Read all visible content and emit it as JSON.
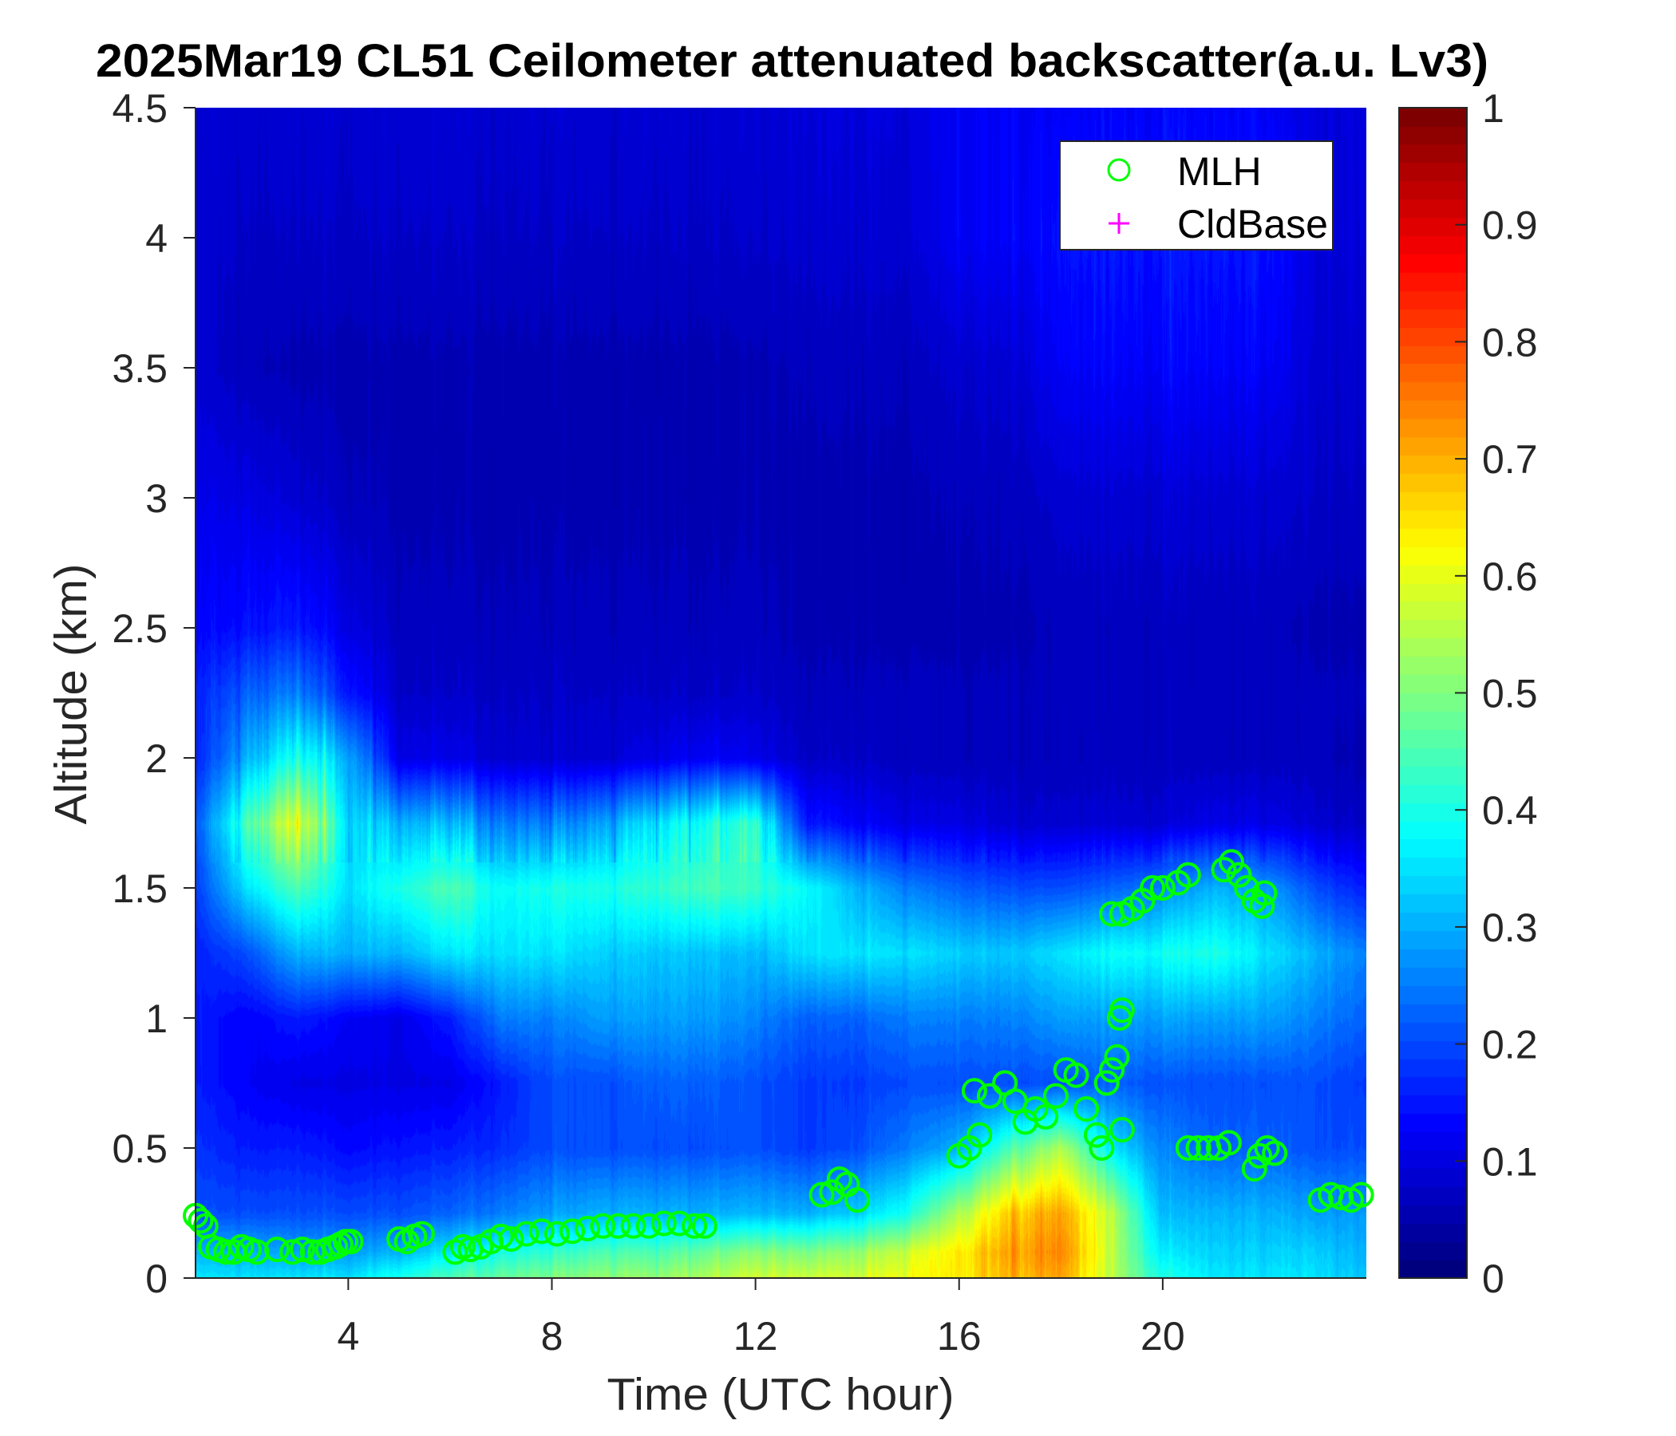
{
  "chart_data": {
    "type": "heatmap",
    "title": "2025Mar19 CL51 Ceilometer attenuated backscatter(a.u. Lv3)",
    "xlabel": "Time (UTC hour)",
    "ylabel": "Altitude (km)",
    "xlim": [
      1,
      24
    ],
    "ylim": [
      0,
      4.5
    ],
    "xticks": [
      4,
      8,
      12,
      16,
      20
    ],
    "xtick_labels": [
      "4",
      "8",
      "12",
      "16",
      "20"
    ],
    "yticks": [
      0,
      0.5,
      1,
      1.5,
      2,
      2.5,
      3,
      3.5,
      4,
      4.5
    ],
    "ytick_labels": [
      "0",
      "0.5",
      "1",
      "1.5",
      "2",
      "2.5",
      "3",
      "3.5",
      "4",
      "4.5"
    ],
    "colormap": "jet",
    "clim": [
      0,
      1
    ],
    "colorbar_ticks": [
      0,
      0.1,
      0.2,
      0.3,
      0.4,
      0.5,
      0.6,
      0.7,
      0.8,
      0.9,
      1
    ],
    "colorbar_tick_labels": [
      "0",
      "0.1",
      "0.2",
      "0.3",
      "0.4",
      "0.5",
      "0.6",
      "0.7",
      "0.8",
      "0.9",
      "1"
    ],
    "grid": false,
    "legend_position": "top-right",
    "legend": [
      {
        "name": "MLH",
        "marker": "circle",
        "color": "#00ff00"
      },
      {
        "name": "CldBase",
        "marker": "plus",
        "color": "#ff00ff"
      }
    ],
    "backscatter_grid": {
      "time_hours": [
        1,
        2,
        3,
        4,
        5,
        6,
        7,
        8,
        9,
        10,
        11,
        12,
        13,
        14,
        15,
        16,
        17,
        18,
        19,
        20,
        21,
        22,
        23,
        24
      ],
      "altitude_km": [
        0,
        0.1,
        0.25,
        0.5,
        0.75,
        1.0,
        1.25,
        1.5,
        1.75,
        2.0,
        2.25,
        2.5,
        3.0,
        3.5,
        4.0,
        4.5
      ],
      "values": [
        [
          0.35,
          0.35,
          0.35,
          0.35,
          0.4,
          0.45,
          0.48,
          0.5,
          0.52,
          0.52,
          0.55,
          0.57,
          0.58,
          0.58,
          0.62,
          0.65,
          0.7,
          0.72,
          0.55,
          0.4,
          0.35,
          0.35,
          0.35,
          0.32
        ],
        [
          0.3,
          0.3,
          0.28,
          0.28,
          0.3,
          0.35,
          0.4,
          0.42,
          0.45,
          0.45,
          0.48,
          0.5,
          0.5,
          0.52,
          0.58,
          0.65,
          0.72,
          0.75,
          0.55,
          0.35,
          0.33,
          0.33,
          0.33,
          0.3
        ],
        [
          0.2,
          0.2,
          0.2,
          0.2,
          0.2,
          0.22,
          0.25,
          0.28,
          0.3,
          0.3,
          0.3,
          0.3,
          0.3,
          0.33,
          0.4,
          0.55,
          0.68,
          0.72,
          0.55,
          0.3,
          0.3,
          0.3,
          0.28,
          0.28
        ],
        [
          0.17,
          0.15,
          0.15,
          0.13,
          0.14,
          0.15,
          0.17,
          0.2,
          0.2,
          0.2,
          0.2,
          0.2,
          0.18,
          0.2,
          0.25,
          0.3,
          0.45,
          0.55,
          0.35,
          0.25,
          0.22,
          0.22,
          0.2,
          0.2
        ],
        [
          0.15,
          0.12,
          0.1,
          0.1,
          0.1,
          0.1,
          0.15,
          0.2,
          0.2,
          0.22,
          0.22,
          0.2,
          0.18,
          0.18,
          0.2,
          0.2,
          0.2,
          0.2,
          0.22,
          0.2,
          0.2,
          0.2,
          0.2,
          0.18
        ],
        [
          0.15,
          0.12,
          0.15,
          0.12,
          0.1,
          0.15,
          0.25,
          0.25,
          0.28,
          0.28,
          0.28,
          0.25,
          0.22,
          0.22,
          0.25,
          0.25,
          0.25,
          0.28,
          0.28,
          0.28,
          0.28,
          0.28,
          0.25,
          0.22
        ],
        [
          0.15,
          0.2,
          0.3,
          0.3,
          0.3,
          0.35,
          0.35,
          0.35,
          0.33,
          0.32,
          0.32,
          0.3,
          0.35,
          0.35,
          0.35,
          0.33,
          0.32,
          0.35,
          0.38,
          0.38,
          0.4,
          0.35,
          0.3,
          0.25
        ],
        [
          0.18,
          0.35,
          0.45,
          0.35,
          0.4,
          0.45,
          0.38,
          0.4,
          0.4,
          0.42,
          0.45,
          0.42,
          0.38,
          0.3,
          0.25,
          0.22,
          0.2,
          0.2,
          0.22,
          0.25,
          0.3,
          0.28,
          0.2,
          0.15
        ],
        [
          0.2,
          0.45,
          0.6,
          0.35,
          0.3,
          0.3,
          0.25,
          0.25,
          0.28,
          0.35,
          0.4,
          0.4,
          0.15,
          0.12,
          0.1,
          0.1,
          0.08,
          0.08,
          0.08,
          0.08,
          0.1,
          0.1,
          0.08,
          0.07
        ],
        [
          0.15,
          0.3,
          0.4,
          0.3,
          0.1,
          0.1,
          0.08,
          0.08,
          0.08,
          0.1,
          0.12,
          0.1,
          0.07,
          0.07,
          0.06,
          0.06,
          0.06,
          0.06,
          0.06,
          0.06,
          0.06,
          0.06,
          0.06,
          0.05
        ],
        [
          0.15,
          0.22,
          0.25,
          0.15,
          0.07,
          0.07,
          0.07,
          0.07,
          0.07,
          0.07,
          0.07,
          0.07,
          0.06,
          0.06,
          0.06,
          0.06,
          0.06,
          0.06,
          0.06,
          0.06,
          0.06,
          0.06,
          0.06,
          0.06
        ],
        [
          0.12,
          0.14,
          0.15,
          0.1,
          0.06,
          0.06,
          0.06,
          0.06,
          0.06,
          0.06,
          0.06,
          0.06,
          0.05,
          0.05,
          0.05,
          0.05,
          0.05,
          0.06,
          0.06,
          0.06,
          0.06,
          0.06,
          0.05,
          0.05
        ],
        [
          0.1,
          0.1,
          0.08,
          0.06,
          0.05,
          0.05,
          0.05,
          0.05,
          0.05,
          0.05,
          0.05,
          0.05,
          0.05,
          0.05,
          0.05,
          0.06,
          0.06,
          0.08,
          0.08,
          0.08,
          0.08,
          0.08,
          0.07,
          0.07
        ],
        [
          0.08,
          0.06,
          0.05,
          0.05,
          0.05,
          0.05,
          0.05,
          0.05,
          0.05,
          0.05,
          0.05,
          0.05,
          0.06,
          0.06,
          0.06,
          0.08,
          0.08,
          0.12,
          0.12,
          0.12,
          0.12,
          0.12,
          0.08,
          0.08
        ],
        [
          0.08,
          0.07,
          0.07,
          0.07,
          0.07,
          0.07,
          0.07,
          0.07,
          0.07,
          0.07,
          0.07,
          0.07,
          0.08,
          0.08,
          0.08,
          0.12,
          0.12,
          0.14,
          0.14,
          0.14,
          0.14,
          0.14,
          0.09,
          0.09
        ],
        [
          0.08,
          0.08,
          0.08,
          0.08,
          0.08,
          0.08,
          0.08,
          0.08,
          0.08,
          0.08,
          0.08,
          0.08,
          0.09,
          0.09,
          0.09,
          0.12,
          0.12,
          0.12,
          0.12,
          0.12,
          0.12,
          0.12,
          0.09,
          0.09
        ]
      ]
    },
    "series": [
      {
        "name": "MLH",
        "points": [
          [
            1.0,
            0.24
          ],
          [
            1.1,
            0.22
          ],
          [
            1.2,
            0.2
          ],
          [
            1.3,
            0.12
          ],
          [
            1.45,
            0.11
          ],
          [
            1.6,
            0.1
          ],
          [
            1.75,
            0.1
          ],
          [
            1.9,
            0.12
          ],
          [
            2.05,
            0.11
          ],
          [
            2.2,
            0.1
          ],
          [
            2.6,
            0.11
          ],
          [
            2.9,
            0.1
          ],
          [
            3.1,
            0.11
          ],
          [
            3.3,
            0.1
          ],
          [
            3.45,
            0.1
          ],
          [
            3.6,
            0.11
          ],
          [
            3.75,
            0.12
          ],
          [
            3.85,
            0.13
          ],
          [
            3.95,
            0.14
          ],
          [
            4.05,
            0.14
          ],
          [
            5.0,
            0.15
          ],
          [
            5.15,
            0.14
          ],
          [
            5.3,
            0.16
          ],
          [
            5.45,
            0.17
          ],
          [
            6.1,
            0.1
          ],
          [
            6.25,
            0.12
          ],
          [
            6.4,
            0.11
          ],
          [
            6.6,
            0.12
          ],
          [
            6.8,
            0.14
          ],
          [
            7.0,
            0.16
          ],
          [
            7.2,
            0.15
          ],
          [
            7.5,
            0.17
          ],
          [
            7.8,
            0.18
          ],
          [
            8.1,
            0.17
          ],
          [
            8.4,
            0.18
          ],
          [
            8.7,
            0.19
          ],
          [
            9.0,
            0.2
          ],
          [
            9.3,
            0.2
          ],
          [
            9.6,
            0.2
          ],
          [
            9.9,
            0.2
          ],
          [
            10.2,
            0.21
          ],
          [
            10.5,
            0.21
          ],
          [
            10.8,
            0.2
          ],
          [
            11.0,
            0.2
          ],
          [
            13.3,
            0.32
          ],
          [
            13.5,
            0.33
          ],
          [
            13.65,
            0.38
          ],
          [
            13.8,
            0.36
          ],
          [
            14.0,
            0.3
          ],
          [
            16.0,
            0.47
          ],
          [
            16.2,
            0.5
          ],
          [
            16.4,
            0.55
          ],
          [
            16.3,
            0.72
          ],
          [
            16.6,
            0.7
          ],
          [
            16.9,
            0.75
          ],
          [
            17.1,
            0.68
          ],
          [
            17.3,
            0.6
          ],
          [
            17.5,
            0.65
          ],
          [
            17.7,
            0.62
          ],
          [
            17.9,
            0.7
          ],
          [
            18.1,
            0.8
          ],
          [
            18.3,
            0.78
          ],
          [
            18.5,
            0.65
          ],
          [
            18.7,
            0.55
          ],
          [
            18.8,
            0.5
          ],
          [
            18.9,
            0.75
          ],
          [
            19.0,
            0.8
          ],
          [
            19.1,
            0.85
          ],
          [
            19.15,
            1.0
          ],
          [
            19.2,
            1.03
          ],
          [
            19.2,
            0.57
          ],
          [
            19.0,
            1.4
          ],
          [
            19.2,
            1.4
          ],
          [
            19.4,
            1.42
          ],
          [
            19.6,
            1.45
          ],
          [
            19.8,
            1.5
          ],
          [
            20.0,
            1.5
          ],
          [
            20.3,
            1.52
          ],
          [
            20.5,
            1.55
          ],
          [
            21.2,
            1.57
          ],
          [
            21.35,
            1.6
          ],
          [
            21.5,
            1.55
          ],
          [
            21.65,
            1.5
          ],
          [
            21.8,
            1.45
          ],
          [
            21.95,
            1.43
          ],
          [
            22.0,
            1.48
          ],
          [
            20.5,
            0.5
          ],
          [
            20.7,
            0.5
          ],
          [
            20.9,
            0.5
          ],
          [
            21.1,
            0.5
          ],
          [
            21.3,
            0.52
          ],
          [
            21.8,
            0.42
          ],
          [
            21.9,
            0.47
          ],
          [
            22.05,
            0.5
          ],
          [
            22.2,
            0.48
          ],
          [
            23.1,
            0.3
          ],
          [
            23.3,
            0.32
          ],
          [
            23.5,
            0.31
          ],
          [
            23.7,
            0.3
          ],
          [
            23.9,
            0.32
          ]
        ]
      },
      {
        "name": "CldBase",
        "points": []
      }
    ]
  }
}
